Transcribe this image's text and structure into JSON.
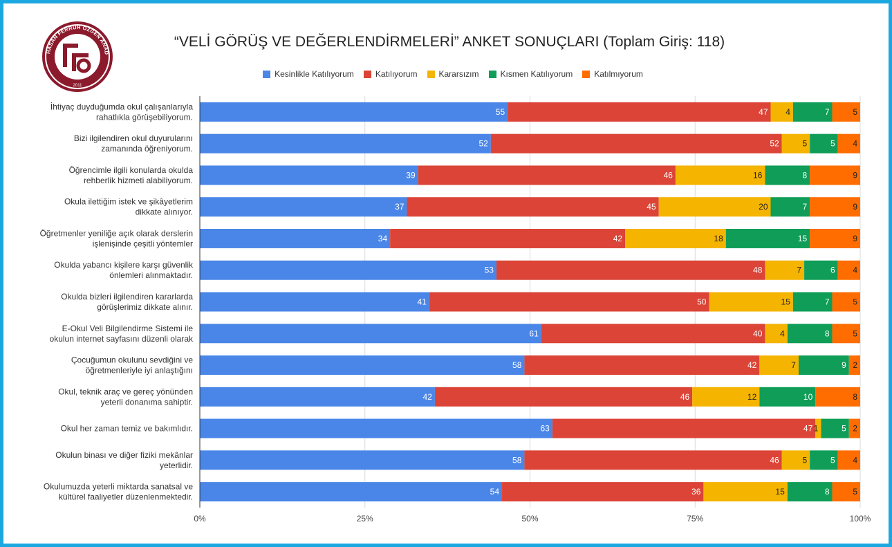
{
  "chart_data": {
    "type": "bar",
    "orientation": "horizontal",
    "stacked": "percent",
    "title": "“VELİ GÖRÜŞ VE DEĞERLENDİRMELERİ” ANKET SONUÇLARI (Toplam Giriş: 118)",
    "legend_position": "top",
    "grid": true,
    "x_ticks": [
      "0%",
      "25%",
      "50%",
      "75%",
      "100%"
    ],
    "categories": [
      [
        "İhtiyaç duyduğumda okul çalışanlarıyla",
        "rahatlıkla görüşebiliyorum."
      ],
      [
        "Bizi ilgilendiren okul duyurularını",
        "zamanında öğreniyorum."
      ],
      [
        "Öğrencimle ilgili konularda okulda",
        "rehberlik hizmeti alabiliyorum."
      ],
      [
        "Okula ilettiğim istek ve şikâyetlerim",
        "dikkate alınıyor."
      ],
      [
        "Öğretmenler yeniliğe açık olarak derslerin",
        "işlenişinde çeşitli yöntemler"
      ],
      [
        "Okulda yabancı kişilere karşı güvenlik",
        "önlemleri alınmaktadır."
      ],
      [
        "Okulda bizleri ilgilendiren kararlarda",
        "görüşlerimiz dikkate alınır."
      ],
      [
        "E-Okul Veli Bilgilendirme Sistemi ile",
        "okulun internet sayfasını düzenli olarak"
      ],
      [
        "Çocuğumun okulunu sevdiğini ve",
        "öğretmenleriyle iyi anlaştığını"
      ],
      [
        "Okul, teknik araç ve gereç yönünden",
        "yeterli donanıma sahiptir."
      ],
      [
        "Okul her zaman temiz ve bakımlıdır."
      ],
      [
        "Okulun binası ve diğer fiziki mekânlar",
        "yeterlidir."
      ],
      [
        "Okulumuzda yeterli miktarda sanatsal ve",
        "kültürel faaliyetler düzenlenmektedir."
      ]
    ],
    "series": [
      {
        "name": "Kesinlikle Katılıyorum",
        "color": "#4a86e8",
        "values": [
          55,
          52,
          39,
          37,
          34,
          53,
          41,
          61,
          58,
          42,
          63,
          58,
          54
        ]
      },
      {
        "name": "Katılıyorum",
        "color": "#db4437",
        "values": [
          47,
          52,
          46,
          45,
          42,
          48,
          50,
          40,
          42,
          46,
          47,
          46,
          36
        ]
      },
      {
        "name": "Kararsızım",
        "color": "#f4b400",
        "values": [
          4,
          5,
          16,
          20,
          18,
          7,
          15,
          4,
          7,
          12,
          1,
          5,
          15
        ]
      },
      {
        "name": "Kısmen Katılıyorum",
        "color": "#0f9d58",
        "values": [
          7,
          5,
          8,
          7,
          15,
          6,
          7,
          8,
          9,
          10,
          5,
          5,
          8
        ]
      },
      {
        "name": "Katılmıyorum",
        "color": "#ff6d01",
        "values": [
          5,
          4,
          9,
          9,
          9,
          4,
          5,
          5,
          2,
          8,
          2,
          4,
          5
        ]
      }
    ]
  },
  "logo": {
    "ring_text": "HASAN FERRUH ÖZGEN ANADOLU LİSESİ",
    "year": "2011"
  }
}
